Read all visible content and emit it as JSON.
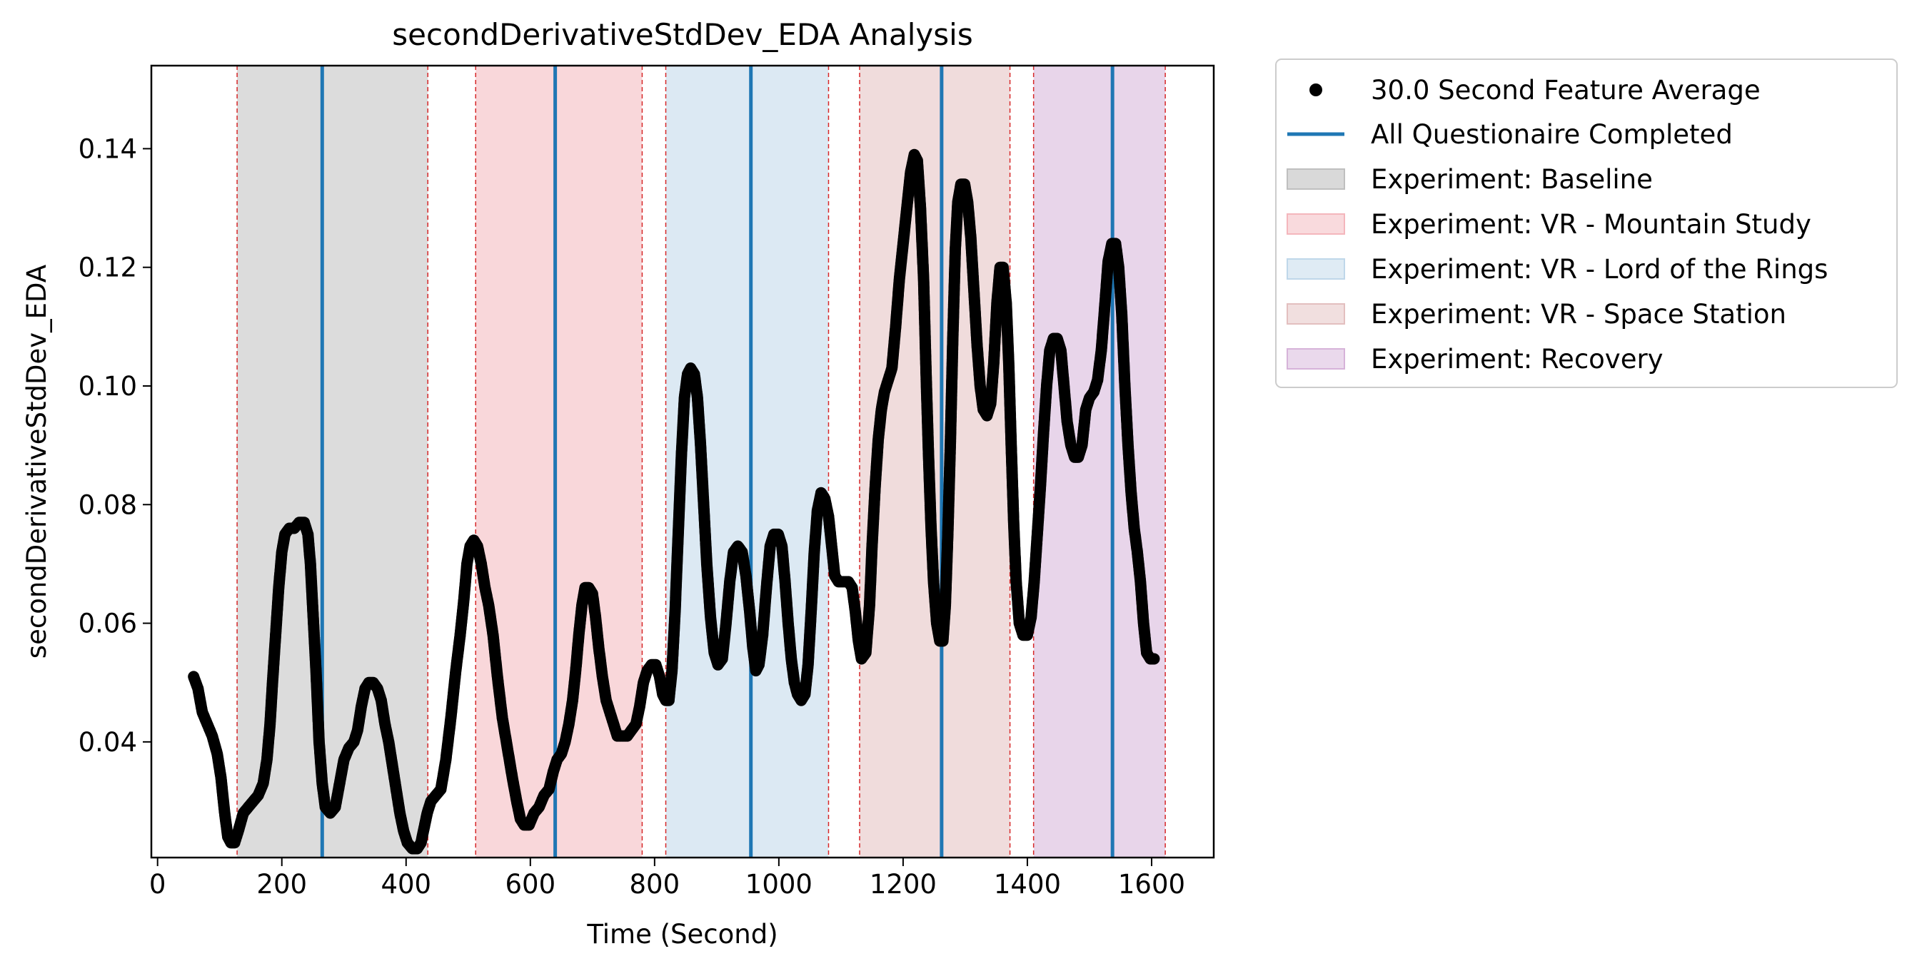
{
  "chart_data": {
    "type": "scatter",
    "title": "secondDerivativeStdDev_EDA Analysis",
    "xlabel": "Time (Second)",
    "ylabel": "secondDerivativeStdDev_EDA",
    "xlim": [
      -10,
      1700
    ],
    "ylim": [
      0.0205,
      0.154
    ],
    "xticks": [
      {
        "value": 0,
        "label": "0"
      },
      {
        "value": 200,
        "label": "200"
      },
      {
        "value": 400,
        "label": "400"
      },
      {
        "value": 600,
        "label": "600"
      },
      {
        "value": 800,
        "label": "800"
      },
      {
        "value": 1000,
        "label": "1000"
      },
      {
        "value": 1200,
        "label": "1200"
      },
      {
        "value": 1400,
        "label": "1400"
      },
      {
        "value": 1600,
        "label": "1600"
      }
    ],
    "yticks": [
      {
        "value": 0.04,
        "label": "0.04"
      },
      {
        "value": 0.06,
        "label": "0.06"
      },
      {
        "value": 0.08,
        "label": "0.08"
      },
      {
        "value": 0.1,
        "label": "0.10"
      },
      {
        "value": 0.12,
        "label": "0.12"
      },
      {
        "value": 0.14,
        "label": "0.14"
      }
    ],
    "grid": false,
    "legend_position": "outside-right-top",
    "feature_series": {
      "label": "30.0 Second Feature Average",
      "color": "#000000",
      "points": [
        [
          58,
          0.051
        ],
        [
          65,
          0.049
        ],
        [
          72,
          0.045
        ],
        [
          80,
          0.043
        ],
        [
          88,
          0.041
        ],
        [
          96,
          0.038
        ],
        [
          102,
          0.034
        ],
        [
          108,
          0.028
        ],
        [
          113,
          0.024
        ],
        [
          118,
          0.023
        ],
        [
          124,
          0.023
        ],
        [
          130,
          0.025
        ],
        [
          138,
          0.028
        ],
        [
          146,
          0.029
        ],
        [
          154,
          0.03
        ],
        [
          162,
          0.031
        ],
        [
          170,
          0.033
        ],
        [
          176,
          0.037
        ],
        [
          181,
          0.043
        ],
        [
          185,
          0.05
        ],
        [
          190,
          0.058
        ],
        [
          195,
          0.066
        ],
        [
          200,
          0.072
        ],
        [
          205,
          0.075
        ],
        [
          212,
          0.076
        ],
        [
          220,
          0.076
        ],
        [
          228,
          0.077
        ],
        [
          236,
          0.077
        ],
        [
          242,
          0.075
        ],
        [
          246,
          0.07
        ],
        [
          250,
          0.062
        ],
        [
          255,
          0.052
        ],
        [
          260,
          0.04
        ],
        [
          265,
          0.033
        ],
        [
          270,
          0.029
        ],
        [
          278,
          0.028
        ],
        [
          286,
          0.029
        ],
        [
          293,
          0.033
        ],
        [
          300,
          0.037
        ],
        [
          308,
          0.039
        ],
        [
          316,
          0.04
        ],
        [
          322,
          0.042
        ],
        [
          328,
          0.046
        ],
        [
          334,
          0.049
        ],
        [
          340,
          0.05
        ],
        [
          347,
          0.05
        ],
        [
          354,
          0.049
        ],
        [
          360,
          0.047
        ],
        [
          366,
          0.043
        ],
        [
          372,
          0.04
        ],
        [
          378,
          0.036
        ],
        [
          384,
          0.032
        ],
        [
          390,
          0.028
        ],
        [
          396,
          0.025
        ],
        [
          402,
          0.023
        ],
        [
          410,
          0.022
        ],
        [
          418,
          0.022
        ],
        [
          424,
          0.023
        ],
        [
          428,
          0.025
        ],
        [
          434,
          0.028
        ],
        [
          440,
          0.03
        ],
        [
          448,
          0.031
        ],
        [
          456,
          0.032
        ],
        [
          464,
          0.037
        ],
        [
          472,
          0.044
        ],
        [
          480,
          0.052
        ],
        [
          487,
          0.058
        ],
        [
          493,
          0.064
        ],
        [
          498,
          0.07
        ],
        [
          503,
          0.073
        ],
        [
          509,
          0.074
        ],
        [
          515,
          0.073
        ],
        [
          521,
          0.07
        ],
        [
          527,
          0.066
        ],
        [
          533,
          0.063
        ],
        [
          540,
          0.058
        ],
        [
          547,
          0.051
        ],
        [
          555,
          0.044
        ],
        [
          563,
          0.039
        ],
        [
          571,
          0.034
        ],
        [
          578,
          0.03
        ],
        [
          584,
          0.027
        ],
        [
          590,
          0.026
        ],
        [
          598,
          0.026
        ],
        [
          606,
          0.028
        ],
        [
          614,
          0.029
        ],
        [
          622,
          0.031
        ],
        [
          630,
          0.032
        ],
        [
          637,
          0.035
        ],
        [
          643,
          0.037
        ],
        [
          650,
          0.038
        ],
        [
          656,
          0.04
        ],
        [
          662,
          0.043
        ],
        [
          668,
          0.047
        ],
        [
          673,
          0.052
        ],
        [
          678,
          0.058
        ],
        [
          683,
          0.063
        ],
        [
          688,
          0.066
        ],
        [
          694,
          0.066
        ],
        [
          700,
          0.065
        ],
        [
          705,
          0.061
        ],
        [
          710,
          0.056
        ],
        [
          716,
          0.051
        ],
        [
          722,
          0.047
        ],
        [
          728,
          0.045
        ],
        [
          734,
          0.043
        ],
        [
          740,
          0.041
        ],
        [
          748,
          0.041
        ],
        [
          756,
          0.041
        ],
        [
          763,
          0.042
        ],
        [
          770,
          0.043
        ],
        [
          776,
          0.046
        ],
        [
          782,
          0.05
        ],
        [
          788,
          0.052
        ],
        [
          795,
          0.053
        ],
        [
          802,
          0.053
        ],
        [
          808,
          0.051
        ],
        [
          813,
          0.048
        ],
        [
          818,
          0.047
        ],
        [
          823,
          0.047
        ],
        [
          828,
          0.052
        ],
        [
          833,
          0.062
        ],
        [
          838,
          0.075
        ],
        [
          843,
          0.088
        ],
        [
          848,
          0.098
        ],
        [
          853,
          0.102
        ],
        [
          858,
          0.103
        ],
        [
          864,
          0.102
        ],
        [
          869,
          0.098
        ],
        [
          874,
          0.09
        ],
        [
          879,
          0.08
        ],
        [
          884,
          0.07
        ],
        [
          890,
          0.061
        ],
        [
          896,
          0.055
        ],
        [
          902,
          0.053
        ],
        [
          909,
          0.054
        ],
        [
          915,
          0.06
        ],
        [
          921,
          0.067
        ],
        [
          927,
          0.072
        ],
        [
          934,
          0.073
        ],
        [
          941,
          0.072
        ],
        [
          947,
          0.068
        ],
        [
          953,
          0.062
        ],
        [
          958,
          0.056
        ],
        [
          963,
          0.052
        ],
        [
          968,
          0.053
        ],
        [
          974,
          0.058
        ],
        [
          980,
          0.066
        ],
        [
          986,
          0.073
        ],
        [
          992,
          0.075
        ],
        [
          999,
          0.075
        ],
        [
          1005,
          0.073
        ],
        [
          1010,
          0.067
        ],
        [
          1015,
          0.06
        ],
        [
          1020,
          0.054
        ],
        [
          1025,
          0.05
        ],
        [
          1030,
          0.048
        ],
        [
          1036,
          0.047
        ],
        [
          1042,
          0.048
        ],
        [
          1047,
          0.053
        ],
        [
          1052,
          0.062
        ],
        [
          1057,
          0.072
        ],
        [
          1062,
          0.079
        ],
        [
          1068,
          0.082
        ],
        [
          1074,
          0.081
        ],
        [
          1080,
          0.078
        ],
        [
          1085,
          0.073
        ],
        [
          1090,
          0.068
        ],
        [
          1096,
          0.067
        ],
        [
          1104,
          0.067
        ],
        [
          1112,
          0.067
        ],
        [
          1118,
          0.066
        ],
        [
          1123,
          0.062
        ],
        [
          1128,
          0.057
        ],
        [
          1133,
          0.054
        ],
        [
          1140,
          0.055
        ],
        [
          1146,
          0.063
        ],
        [
          1150,
          0.073
        ],
        [
          1155,
          0.083
        ],
        [
          1160,
          0.091
        ],
        [
          1165,
          0.096
        ],
        [
          1170,
          0.099
        ],
        [
          1176,
          0.101
        ],
        [
          1182,
          0.103
        ],
        [
          1188,
          0.11
        ],
        [
          1194,
          0.118
        ],
        [
          1200,
          0.124
        ],
        [
          1206,
          0.13
        ],
        [
          1212,
          0.136
        ],
        [
          1218,
          0.139
        ],
        [
          1223,
          0.138
        ],
        [
          1228,
          0.13
        ],
        [
          1233,
          0.118
        ],
        [
          1237,
          0.102
        ],
        [
          1241,
          0.088
        ],
        [
          1245,
          0.076
        ],
        [
          1249,
          0.067
        ],
        [
          1254,
          0.06
        ],
        [
          1259,
          0.057
        ],
        [
          1264,
          0.057
        ],
        [
          1268,
          0.063
        ],
        [
          1272,
          0.075
        ],
        [
          1276,
          0.09
        ],
        [
          1280,
          0.108
        ],
        [
          1284,
          0.123
        ],
        [
          1288,
          0.131
        ],
        [
          1293,
          0.134
        ],
        [
          1299,
          0.134
        ],
        [
          1304,
          0.131
        ],
        [
          1309,
          0.125
        ],
        [
          1314,
          0.116
        ],
        [
          1319,
          0.107
        ],
        [
          1324,
          0.1
        ],
        [
          1329,
          0.096
        ],
        [
          1335,
          0.095
        ],
        [
          1341,
          0.097
        ],
        [
          1346,
          0.104
        ],
        [
          1351,
          0.114
        ],
        [
          1356,
          0.12
        ],
        [
          1361,
          0.12
        ],
        [
          1366,
          0.114
        ],
        [
          1370,
          0.104
        ],
        [
          1374,
          0.09
        ],
        [
          1378,
          0.077
        ],
        [
          1382,
          0.067
        ],
        [
          1387,
          0.06
        ],
        [
          1393,
          0.058
        ],
        [
          1400,
          0.058
        ],
        [
          1406,
          0.061
        ],
        [
          1411,
          0.067
        ],
        [
          1416,
          0.075
        ],
        [
          1421,
          0.083
        ],
        [
          1426,
          0.092
        ],
        [
          1431,
          0.1
        ],
        [
          1436,
          0.106
        ],
        [
          1442,
          0.108
        ],
        [
          1448,
          0.108
        ],
        [
          1454,
          0.106
        ],
        [
          1459,
          0.1
        ],
        [
          1464,
          0.094
        ],
        [
          1470,
          0.09
        ],
        [
          1476,
          0.088
        ],
        [
          1482,
          0.088
        ],
        [
          1488,
          0.09
        ],
        [
          1494,
          0.096
        ],
        [
          1500,
          0.098
        ],
        [
          1507,
          0.099
        ],
        [
          1513,
          0.101
        ],
        [
          1519,
          0.106
        ],
        [
          1525,
          0.114
        ],
        [
          1530,
          0.121
        ],
        [
          1536,
          0.124
        ],
        [
          1542,
          0.124
        ],
        [
          1547,
          0.12
        ],
        [
          1552,
          0.112
        ],
        [
          1557,
          0.1
        ],
        [
          1562,
          0.09
        ],
        [
          1567,
          0.082
        ],
        [
          1572,
          0.076
        ],
        [
          1577,
          0.072
        ],
        [
          1582,
          0.067
        ],
        [
          1587,
          0.06
        ],
        [
          1592,
          0.055
        ],
        [
          1598,
          0.054
        ],
        [
          1604,
          0.054
        ]
      ]
    },
    "questionnaire": {
      "label": "All Questionaire Completed",
      "color": "#1f77b4",
      "times": [
        265,
        640,
        955,
        1262,
        1537
      ]
    },
    "phases": [
      {
        "label": "Experiment: Baseline",
        "start": 128,
        "end": 435,
        "color": "#bfbfbf"
      },
      {
        "label": "Experiment: VR - Mountain Study",
        "start": 512,
        "end": 780,
        "color": "#f4b6bc"
      },
      {
        "label": "Experiment: VR - Lord of the Rings",
        "start": 818,
        "end": 1080,
        "color": "#bfd7ea"
      },
      {
        "label": "Experiment: VR - Space Station",
        "start": 1130,
        "end": 1372,
        "color": "#e3bfbf"
      },
      {
        "label": "Experiment: Recovery",
        "start": 1410,
        "end": 1622,
        "color": "#d6b3d9"
      }
    ],
    "phase_boundary_color": "#d62728"
  }
}
